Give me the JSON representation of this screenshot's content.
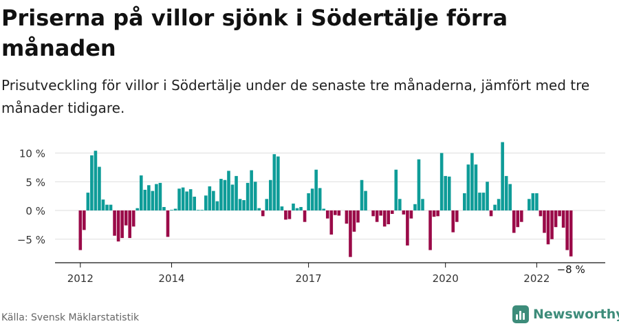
{
  "header": {
    "title": "Priserna på villor sjönk i Södertälje förra månaden",
    "subtitle": "Prisutveckling för villor i Södertälje under de senaste tre månaderna, jämfört med tre månader tidigare."
  },
  "footer": {
    "source": "Källa: Svensk Mäklarstatistik",
    "brand": "Newsworthy"
  },
  "colors": {
    "positive": "#0e9c98",
    "negative": "#9a0a48",
    "grid": "#dddddd",
    "axis": "#111111",
    "brand": "#3d8c7a"
  },
  "chart_data": {
    "type": "bar",
    "ylim": [
      -9,
      13
    ],
    "y_ticks": [
      -5,
      0,
      5,
      10
    ],
    "y_tick_labels": [
      "−5 %",
      "0 %",
      "5 %",
      "10 %"
    ],
    "x_tick_labels": [
      {
        "label": "2012",
        "index": 0
      },
      {
        "label": "2014",
        "index": 24
      },
      {
        "label": "2017",
        "index": 60
      },
      {
        "label": "2020",
        "index": 96
      },
      {
        "label": "2022",
        "index": 120
      }
    ],
    "last_value_label": "−8 %",
    "values": [
      -6.9,
      -3.4,
      3.1,
      9.6,
      10.4,
      7.6,
      1.9,
      1.0,
      1.0,
      -4.4,
      -5.4,
      -4.8,
      -2.6,
      -4.8,
      -2.8,
      0.4,
      6.1,
      3.6,
      4.4,
      3.4,
      4.6,
      4.8,
      0.6,
      -4.6,
      0.1,
      0.3,
      3.8,
      4.0,
      3.3,
      3.7,
      2.4,
      0.1,
      0.1,
      2.6,
      4.2,
      3.4,
      1.6,
      5.5,
      5.3,
      6.9,
      4.5,
      6.0,
      2.0,
      1.8,
      4.8,
      7.0,
      5.0,
      0.4,
      -1.0,
      2.0,
      5.3,
      9.8,
      9.4,
      0.7,
      -1.6,
      -1.5,
      1.2,
      0.4,
      0.6,
      -2.0,
      3.0,
      3.8,
      7.1,
      3.9,
      0.3,
      -1.4,
      -4.2,
      -0.8,
      -0.9,
      0.0,
      -2.3,
      -8.1,
      -3.7,
      -2.1,
      5.3,
      3.4,
      0.0,
      -1.0,
      -2.0,
      -0.9,
      -2.8,
      -2.4,
      -0.6,
      7.1,
      2.0,
      -0.7,
      -6.1,
      -1.4,
      1.1,
      8.9,
      2.0,
      0.0,
      -6.9,
      -1.1,
      -1.0,
      10.0,
      6.0,
      5.9,
      -3.8,
      -2.0,
      0.0,
      3.0,
      8.0,
      10.0,
      8.0,
      3.1,
      3.1,
      5.0,
      -1.0,
      1.0,
      2.0,
      11.9,
      6.0,
      4.6,
      -3.9,
      -2.9,
      -2.0,
      0.0,
      2.0,
      3.0,
      3.0,
      -1.0,
      -3.9,
      -5.9,
      -5.0,
      -2.9,
      -1.0,
      -3.0,
      -6.9,
      -8.0
    ]
  }
}
